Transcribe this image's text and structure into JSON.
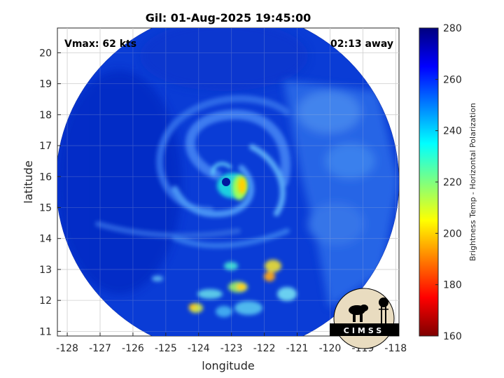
{
  "chart_data": {
    "type": "heatmap",
    "title": "Gil: 01-Aug-2025 19:45:00",
    "xlabel": "longitude",
    "ylabel": "latitude",
    "xlim": [
      -128.3,
      -117.9
    ],
    "ylim": [
      10.85,
      20.8
    ],
    "x_ticks": [
      -128,
      -127,
      -126,
      -125,
      -124,
      -123,
      -122,
      -121,
      -120,
      -119,
      -118
    ],
    "y_ticks": [
      11,
      12,
      13,
      14,
      15,
      16,
      17,
      18,
      19,
      20
    ],
    "grid": true,
    "annotations": {
      "vmax": "Vmax: 62 kts",
      "time_away": "02:13 away"
    },
    "storm_center": {
      "lon": -122.9,
      "lat": 15.9
    },
    "colorbar": {
      "label": "Brightness Temp - Horizontal Polarization",
      "range": [
        160,
        280
      ],
      "ticks": [
        160,
        180,
        200,
        220,
        240,
        260,
        280
      ],
      "colormap": "jet"
    },
    "swath": {
      "center_lon": -123.1,
      "center_lat": 15.8,
      "radius_deg": 5.3
    }
  },
  "logo": {
    "text": "CIMSS"
  },
  "colors": {
    "background_field": "#0a3bd8",
    "cold_core": "#ffd000",
    "land_border": "#1a1a1a"
  }
}
